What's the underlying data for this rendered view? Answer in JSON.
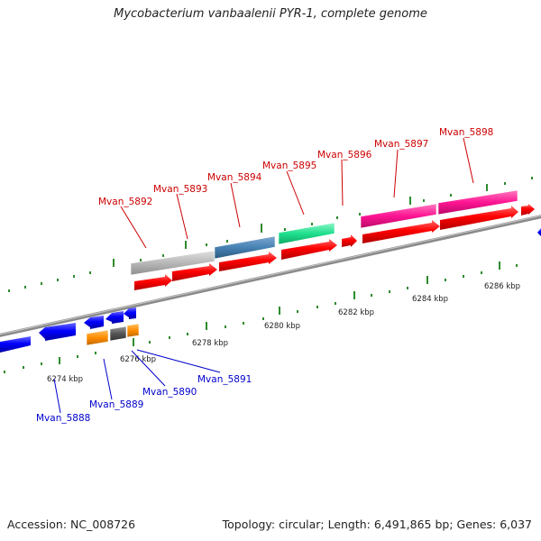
{
  "header": {
    "title": "Mycobacterium vanbaalenii PYR-1, complete genome"
  },
  "footer": {
    "accession": "Accession: NC_008726",
    "summary": "Topology: circular; Length: 6,491,865 bp; Genes: 6,037"
  },
  "scale_labels": [
    "6274 kbp",
    "6276 kbp",
    "6278 kbp",
    "6280 kbp",
    "6282 kbp",
    "6284 kbp",
    "6286 kbp"
  ],
  "upper_gene_labels": [
    "Mvan_5892",
    "Mvan_5893",
    "Mvan_5894",
    "Mvan_5895",
    "Mvan_5896",
    "Mvan_5897",
    "Mvan_5898"
  ],
  "lower_gene_labels": [
    "Mvan_5888",
    "Mvan_5889",
    "Mvan_5890",
    "Mvan_5891"
  ],
  "colors": {
    "upper_label": "#cc0000",
    "lower_label": "#0000cc",
    "cds_forward": "#ff0000",
    "cds_reverse": "#0000ff",
    "feature_gray": "#b5b5b5",
    "feature_steelblue": "#4682b4",
    "feature_green": "#1fe08e",
    "feature_pink": "#ff1493",
    "feature_orange": "#ff8c00",
    "feature_darkgray": "#555555",
    "tick_green": "#228b22",
    "backbone": "#888888"
  }
}
